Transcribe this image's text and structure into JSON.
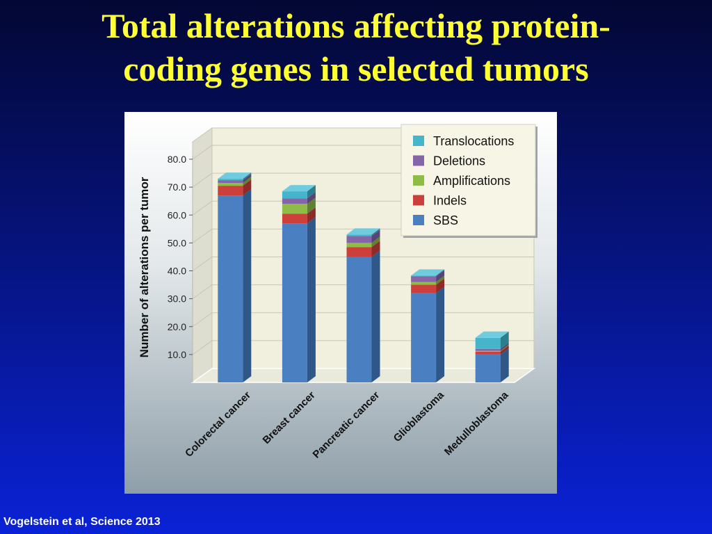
{
  "slide": {
    "title_line1": "Total alterations affecting protein-",
    "title_line2": "coding genes in selected tumors",
    "citation": "Vogelstein et al, Science 2013"
  },
  "chart_data": {
    "type": "bar",
    "stacked": true,
    "three_d": true,
    "title": "",
    "xlabel": "",
    "ylabel": "Number of alterations per tumor",
    "ylim": [
      0,
      80
    ],
    "yticks": [
      "10.0",
      "20.0",
      "30.0",
      "40.0",
      "50.0",
      "60.0",
      "70.0",
      "80.0"
    ],
    "categories": [
      "Colorectal cancer",
      "Breast cancer",
      "Pancreatic cancer",
      "Glioblastoma",
      "Medulloblastoma"
    ],
    "legend_position": "top-right",
    "series": [
      {
        "name": "SBS",
        "color": "#4a7fc1",
        "side_color": "#2f5788",
        "top_color": "#6a9ad3",
        "values": [
          67,
          57,
          45,
          32,
          10
        ]
      },
      {
        "name": "Indels",
        "color": "#cc3f3b",
        "side_color": "#8e2a27",
        "top_color": "#e06662",
        "values": [
          3.5,
          3.5,
          3.5,
          3,
          1
        ]
      },
      {
        "name": "Amplifications",
        "color": "#8ebc47",
        "side_color": "#5f8230",
        "top_color": "#a8d25f",
        "values": [
          1.0,
          3.5,
          1.5,
          1.0,
          0.3
        ]
      },
      {
        "name": "Deletions",
        "color": "#8565a8",
        "side_color": "#5a4475",
        "top_color": "#a085c3",
        "values": [
          1.0,
          2.0,
          2.5,
          2.0,
          0.7
        ]
      },
      {
        "name": "Translocations",
        "color": "#45b5cc",
        "side_color": "#2c7d8e",
        "top_color": "#6fcbdd",
        "values": [
          0.5,
          2.5,
          0.5,
          0.3,
          4.0
        ]
      }
    ]
  }
}
